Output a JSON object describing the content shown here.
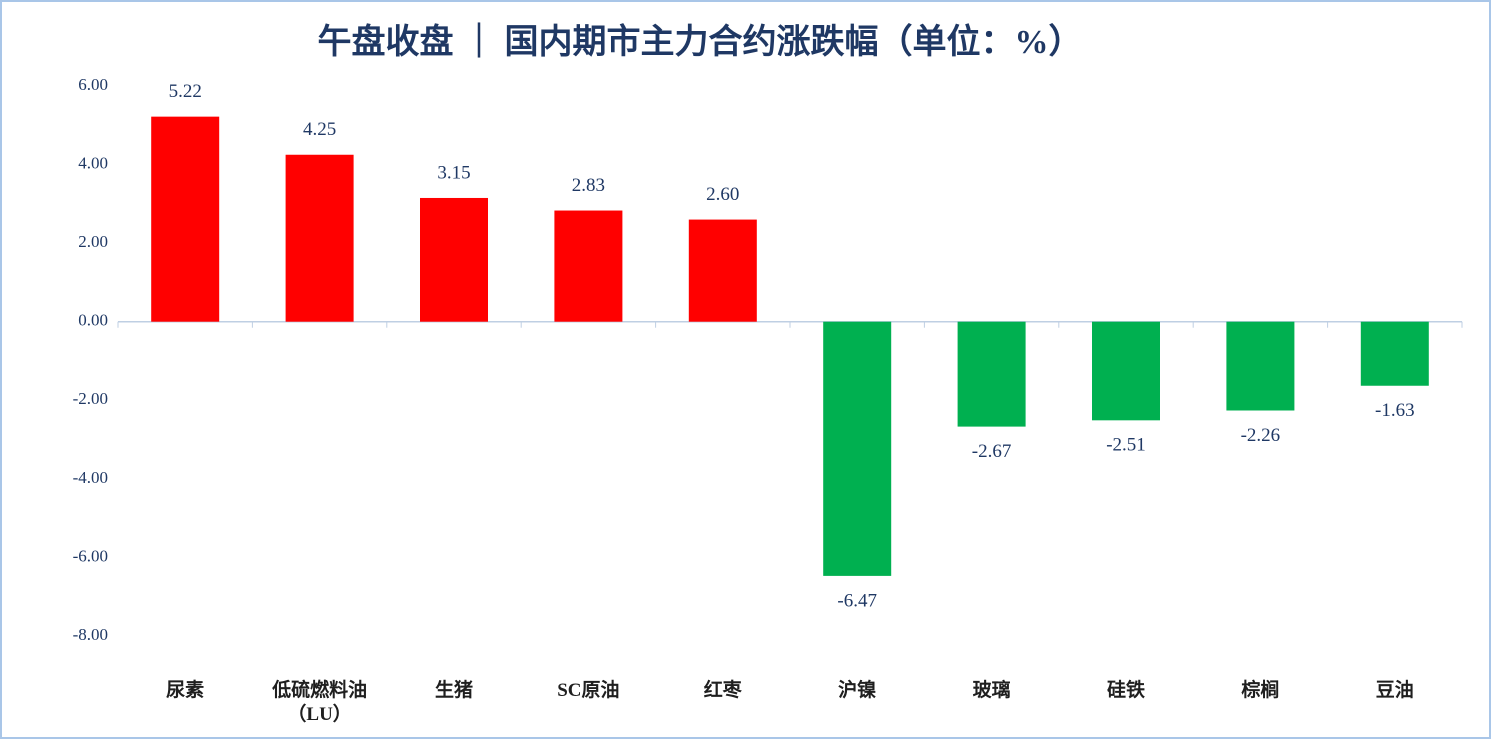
{
  "chart_data": {
    "type": "bar",
    "title": "午盘收盘 ｜ 国内期市主力合约涨跌幅（单位：%）",
    "categories": [
      "尿素",
      "低硫燃料油（LU）",
      "生猪",
      "SC原油",
      "红枣",
      "沪镍",
      "玻璃",
      "硅铁",
      "棕榈",
      "豆油"
    ],
    "values": [
      5.22,
      4.25,
      3.15,
      2.83,
      2.6,
      -6.47,
      -2.67,
      -2.51,
      -2.26,
      -1.63
    ],
    "value_labels": [
      "5.22",
      "4.25",
      "3.15",
      "2.83",
      "2.60",
      "-6.47",
      "-2.67",
      "-2.51",
      "-2.26",
      "-1.63"
    ],
    "positive_color": "#ff0000",
    "negative_color": "#00b050",
    "ylim": [
      -8,
      6
    ],
    "yticks": [
      {
        "value": -8,
        "label": "-8.00"
      },
      {
        "value": -6,
        "label": "-6.00"
      },
      {
        "value": -4,
        "label": "-4.00"
      },
      {
        "value": -2,
        "label": "-2.00"
      },
      {
        "value": 0,
        "label": "0.00"
      },
      {
        "value": 2,
        "label": "2.00"
      },
      {
        "value": 4,
        "label": "4.00"
      },
      {
        "value": 6,
        "label": "6.00"
      }
    ],
    "grid": false
  }
}
